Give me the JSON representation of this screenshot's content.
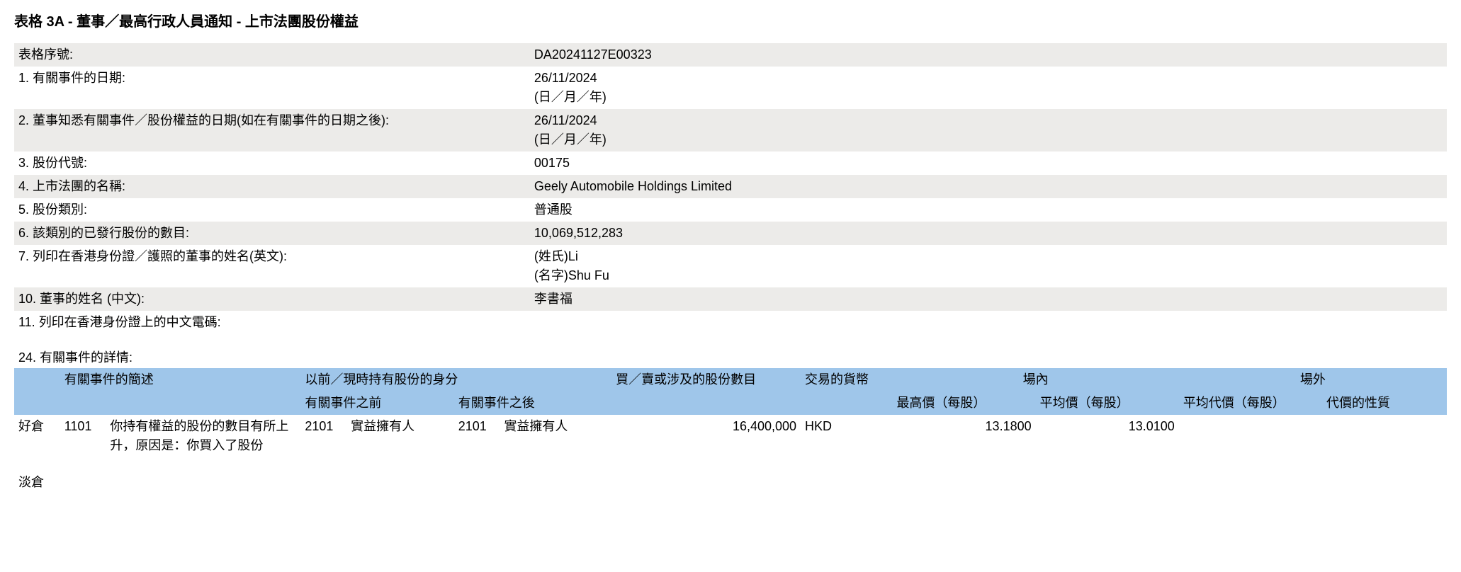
{
  "title": "表格 3A - 董事／最高行政人員通知 - 上市法團股份權益",
  "info_rows": [
    {
      "label": "表格序號:",
      "value": "DA20241127E00323",
      "stripe": true
    },
    {
      "label": "1. 有關事件的日期:",
      "value": "26/11/2024\n(日／月／年)",
      "stripe": false
    },
    {
      "label": "2. 董事知悉有關事件／股份權益的日期(如在有關事件的日期之後):",
      "value": "26/11/2024\n(日／月／年)",
      "stripe": true
    },
    {
      "label": "3. 股份代號:",
      "value": "00175",
      "stripe": false
    },
    {
      "label": "4. 上市法團的名稱:",
      "value": "Geely Automobile Holdings Limited",
      "stripe": true
    },
    {
      "label": "5. 股份類別:",
      "value": "普通股",
      "stripe": false
    },
    {
      "label": "6. 該類別的已發行股份的數目:",
      "value": "10,069,512,283",
      "stripe": true
    },
    {
      "label": "7. 列印在香港身份證／護照的董事的姓名(英文):",
      "value": "(姓氏)Li\n(名字)Shu Fu",
      "stripe": false
    },
    {
      "label": "10. 董事的姓名 (中文):",
      "value": "李書福",
      "stripe": true
    },
    {
      "label": "11. 列印在香港身份證上的中文電碼:",
      "value": "",
      "stripe": false
    }
  ],
  "section24_label": "24. 有關事件的詳情:",
  "detail_header": {
    "event_desc": "有關事件的簡述",
    "capacity": "以前／現時持有股份的身分",
    "capacity_before": "有關事件之前",
    "capacity_after": "有關事件之後",
    "shares": "買／賣或涉及的股份數目",
    "currency": "交易的貨幣",
    "on_exchange": "場內",
    "high_price": "最高價（每股）",
    "avg_price": "平均價（每股）",
    "off_exchange": "場外",
    "off_avg": "平均代價（每股）",
    "nature": "代價的性質"
  },
  "detail_row": {
    "position": "好倉",
    "event_code": "1101",
    "event_desc": "你持有權益的股份的數目有所上升，原因是：你買入了股份",
    "capacity_before_code": "2101",
    "capacity_before_txt": "實益擁有人",
    "capacity_after_code": "2101",
    "capacity_after_txt": "實益擁有人",
    "shares": "16,400,000",
    "currency": "HKD",
    "high_price": "13.1800",
    "avg_price": "13.0100",
    "off_avg": "",
    "nature": ""
  },
  "short_position_label": "淡倉"
}
